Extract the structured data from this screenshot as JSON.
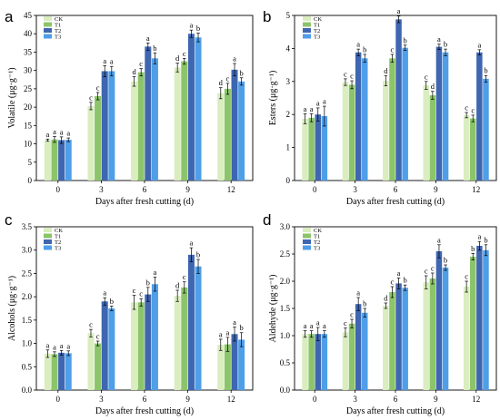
{
  "legend_labels": [
    "CK",
    "T1",
    "T2",
    "T3"
  ],
  "colors": [
    "#d9edbf",
    "#8cc46a",
    "#3f66b0",
    "#4f9ee8"
  ],
  "chart_data": [
    {
      "letter": "a",
      "type": "bar",
      "ylabel": "Volatile (μg·g⁻¹)",
      "xlabel": "Days after fresh cutting (d)",
      "categories": [
        "0",
        "3",
        "6",
        "9",
        "12"
      ],
      "ylim": [
        0,
        45
      ],
      "yticks": [
        "0",
        "5",
        "10",
        "15",
        "20",
        "25",
        "30",
        "35",
        "40",
        "45"
      ],
      "series": [
        {
          "name": "CK",
          "values": [
            11.0,
            20.3,
            27.0,
            30.8,
            23.8
          ],
          "errors": [
            0.3,
            1.0,
            1.3,
            1.2,
            1.5
          ],
          "letters": [
            "a",
            "c",
            "d",
            "d",
            "d"
          ]
        },
        {
          "name": "T1",
          "values": [
            11.2,
            23.0,
            29.5,
            32.5,
            25.0
          ],
          "errors": [
            0.8,
            1.0,
            1.0,
            0.8,
            1.5
          ],
          "letters": [
            "a",
            "c",
            "c",
            "c",
            "c"
          ]
        },
        {
          "name": "T2",
          "values": [
            11.0,
            29.8,
            36.5,
            40.0,
            30.2
          ],
          "errors": [
            0.9,
            1.5,
            1.0,
            1.0,
            1.7
          ],
          "letters": [
            "a",
            "a",
            "a",
            "a",
            "a"
          ]
        },
        {
          "name": "T3",
          "values": [
            11.1,
            29.8,
            33.3,
            39.0,
            27.0
          ],
          "errors": [
            0.5,
            1.3,
            1.5,
            1.2,
            1.0
          ],
          "letters": [
            "a",
            "a",
            "b",
            "b",
            "b"
          ]
        }
      ]
    },
    {
      "letter": "b",
      "type": "bar",
      "ylabel": "Esters (μg·g⁻¹)",
      "xlabel": "Days after fresh cutting (d)",
      "categories": [
        "0",
        "3",
        "6",
        "9",
        "12"
      ],
      "ylim": [
        0,
        5
      ],
      "yticks": [
        "0",
        "1",
        "2",
        "3",
        "4",
        "5"
      ],
      "series": [
        {
          "name": "CK",
          "values": [
            1.87,
            2.98,
            3.02,
            2.88,
            1.98
          ],
          "errors": [
            0.15,
            0.1,
            0.15,
            0.12,
            0.08
          ],
          "letters": [
            "a",
            "c",
            "d",
            "c",
            "c"
          ]
        },
        {
          "name": "T1",
          "values": [
            1.9,
            2.9,
            3.7,
            2.58,
            1.88
          ],
          "errors": [
            0.12,
            0.12,
            0.12,
            0.12,
            0.1
          ],
          "letters": [
            "a",
            "c",
            "c",
            "d",
            "c"
          ]
        },
        {
          "name": "T2",
          "values": [
            2.0,
            3.88,
            4.88,
            4.05,
            3.88
          ],
          "errors": [
            0.2,
            0.1,
            0.1,
            0.08,
            0.08
          ],
          "letters": [
            "a",
            "a",
            "a",
            "a",
            "a"
          ]
        },
        {
          "name": "T3",
          "values": [
            1.95,
            3.7,
            4.02,
            3.88,
            3.08
          ],
          "errors": [
            0.3,
            0.12,
            0.08,
            0.1,
            0.1
          ],
          "letters": [
            "a",
            "b",
            "b",
            "b",
            "b"
          ]
        }
      ]
    },
    {
      "letter": "c",
      "type": "bar",
      "ylabel": "Alcohols (μg·g⁻¹)",
      "xlabel": "Days after fresh cutting (d)",
      "categories": [
        "0",
        "3",
        "6",
        "9",
        "12"
      ],
      "ylim": [
        0,
        3.5
      ],
      "yticks": [
        "0.0",
        "0.5",
        "1.0",
        "1.5",
        "2.0",
        "2.5",
        "3.0",
        "3.5"
      ],
      "series": [
        {
          "name": "CK",
          "values": [
            0.78,
            1.22,
            1.88,
            2.02,
            0.97
          ],
          "errors": [
            0.08,
            0.08,
            0.15,
            0.12,
            0.12
          ],
          "letters": [
            "a",
            "c",
            "c",
            "d",
            "a"
          ]
        },
        {
          "name": "T1",
          "values": [
            0.77,
            1.0,
            1.88,
            2.2,
            0.98
          ],
          "errors": [
            0.05,
            0.05,
            0.08,
            0.12,
            0.15
          ],
          "letters": [
            "a",
            "c",
            "c",
            "c",
            "a"
          ]
        },
        {
          "name": "T2",
          "values": [
            0.8,
            1.9,
            2.05,
            2.9,
            1.2
          ],
          "errors": [
            0.05,
            0.08,
            0.15,
            0.15,
            0.15
          ],
          "letters": [
            "a",
            "a",
            "b",
            "a",
            "a"
          ]
        },
        {
          "name": "T3",
          "values": [
            0.79,
            1.75,
            2.27,
            2.65,
            1.08
          ],
          "errors": [
            0.05,
            0.05,
            0.15,
            0.15,
            0.15
          ],
          "letters": [
            "a",
            "b",
            "a",
            "b",
            "b"
          ]
        }
      ]
    },
    {
      "letter": "d",
      "type": "bar",
      "ylabel": "Aldehyde (μg·g⁻¹)",
      "xlabel": "Days after fresh cutting (d)",
      "categories": [
        "0",
        "3",
        "6",
        "9",
        "12"
      ],
      "ylim": [
        0,
        3.0
      ],
      "yticks": [
        "0.0",
        "0.5",
        "1.0",
        "1.5",
        "2.0",
        "2.5",
        "3.0"
      ],
      "series": [
        {
          "name": "CK",
          "values": [
            1.03,
            1.06,
            1.55,
            1.98,
            1.9
          ],
          "errors": [
            0.06,
            0.08,
            0.05,
            0.12,
            0.1
          ],
          "letters": [
            "a",
            "c",
            "d",
            "c",
            "c"
          ]
        },
        {
          "name": "T1",
          "values": [
            1.03,
            1.22,
            1.8,
            2.05,
            2.45
          ],
          "errors": [
            0.06,
            0.08,
            0.1,
            0.1,
            0.06
          ],
          "letters": [
            "a",
            "c",
            "c",
            "c",
            "b"
          ]
        },
        {
          "name": "T2",
          "values": [
            1.03,
            1.58,
            1.96,
            2.55,
            2.65
          ],
          "errors": [
            0.12,
            0.12,
            0.1,
            0.12,
            0.08
          ],
          "letters": [
            "a",
            "a",
            "a",
            "a",
            "a"
          ]
        },
        {
          "name": "T3",
          "values": [
            1.03,
            1.42,
            1.88,
            2.25,
            2.57
          ],
          "errors": [
            0.06,
            0.08,
            0.05,
            0.05,
            0.1
          ],
          "letters": [
            "a",
            "b",
            "b",
            "b",
            "b"
          ]
        }
      ]
    }
  ]
}
